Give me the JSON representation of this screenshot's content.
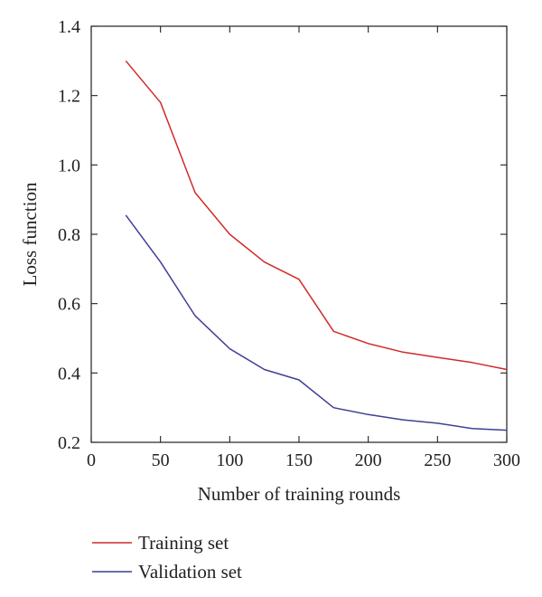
{
  "chart_data": {
    "type": "line",
    "title": "",
    "xlabel": "Number of training rounds",
    "ylabel": "Loss function",
    "xlim": [
      0,
      300
    ],
    "ylim": [
      0.2,
      1.4
    ],
    "xticks": [
      0,
      50,
      100,
      150,
      200,
      250,
      300
    ],
    "yticks": [
      0.2,
      0.4,
      0.6,
      0.8,
      1.0,
      1.2,
      1.4
    ],
    "xtick_labels": [
      "0",
      "50",
      "100",
      "150",
      "200",
      "250",
      "300"
    ],
    "ytick_labels": [
      "0.2",
      "0.4",
      "0.6",
      "0.8",
      "1.0",
      "1.2",
      "1.4"
    ],
    "grid": false,
    "legend_position": "bottom-left, below plot",
    "series": [
      {
        "name": "Training set",
        "color": "#d02a2a",
        "x": [
          25,
          50,
          75,
          100,
          125,
          150,
          175,
          200,
          225,
          250,
          275,
          300
        ],
        "y": [
          1.3,
          1.18,
          0.92,
          0.8,
          0.72,
          0.67,
          0.52,
          0.485,
          0.46,
          0.445,
          0.43,
          0.41
        ]
      },
      {
        "name": "Validation set",
        "color": "#3f3f96",
        "x": [
          25,
          50,
          75,
          100,
          125,
          150,
          175,
          200,
          225,
          250,
          275,
          300
        ],
        "y": [
          0.855,
          0.72,
          0.565,
          0.47,
          0.41,
          0.38,
          0.3,
          0.28,
          0.265,
          0.255,
          0.24,
          0.235
        ]
      }
    ]
  }
}
